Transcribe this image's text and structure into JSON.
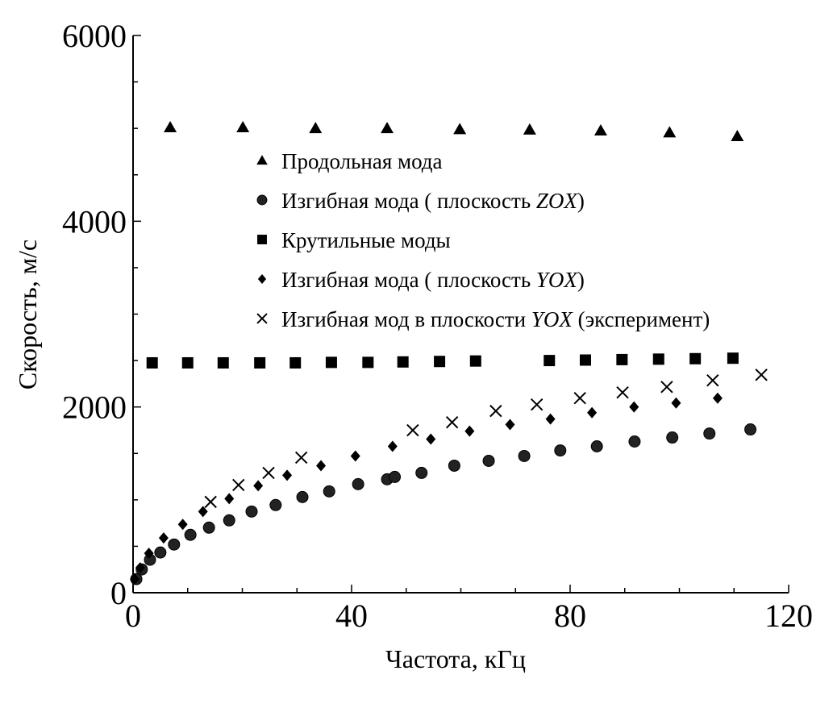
{
  "chart_data": {
    "type": "scatter",
    "title": "",
    "xlabel": "Частота, кГц",
    "ylabel": "Скорость, м/с",
    "xlim": [
      0,
      120
    ],
    "ylim": [
      0,
      6000
    ],
    "x_ticks": [
      0,
      40,
      80,
      120
    ],
    "y_ticks": [
      0,
      2000,
      4000,
      6000
    ],
    "x_tick_labels": [
      "0",
      "40",
      "80",
      "120"
    ],
    "y_tick_labels": [
      "0",
      "2000",
      "4000",
      "6000"
    ],
    "grid": false,
    "legend_position": "center",
    "series": [
      {
        "name": "Продольная мода",
        "label_pre": "Продольная мода",
        "label_it": "",
        "label_post": "",
        "marker": "triangle",
        "x": [
          6.8,
          20.1,
          33.4,
          46.5,
          59.8,
          72.6,
          85.6,
          98.2,
          110.6
        ],
        "y": [
          5010,
          5010,
          5000,
          5000,
          4990,
          4985,
          4975,
          4955,
          4915
        ]
      },
      {
        "name": "Изгибная мода  ( плоскость ZOX)",
        "label_pre": "Изгибная мода  ( плоскость ",
        "label_it": "ZOX",
        "label_post": ")",
        "marker": "circle",
        "x": [
          0.6,
          1.6,
          3.1,
          5.0,
          7.5,
          10.5,
          13.9,
          17.6,
          21.7,
          26.1,
          31.0,
          35.9,
          41.2,
          46.5,
          47.9,
          52.8,
          58.8,
          65.1,
          71.6,
          78.2,
          84.9,
          91.8,
          98.7,
          105.5,
          113.0
        ],
        "y": [
          147,
          251,
          355,
          433,
          519,
          623,
          701,
          779,
          874,
          944,
          1030,
          1091,
          1169,
          1221,
          1247,
          1290,
          1368,
          1420,
          1472,
          1532,
          1576,
          1628,
          1671,
          1714,
          1758
        ]
      },
      {
        "name": "Крутильные моды",
        "label_pre": "Крутильные моды",
        "label_it": "",
        "label_post": "",
        "marker": "square",
        "x": [
          3.5,
          10.0,
          16.5,
          23.2,
          29.7,
          36.3,
          43.0,
          49.4,
          56.1,
          62.7,
          76.2,
          82.8,
          89.5,
          96.2,
          102.9,
          109.8
        ],
        "y": [
          2475,
          2475,
          2475,
          2475,
          2475,
          2480,
          2480,
          2485,
          2490,
          2495,
          2500,
          2505,
          2510,
          2515,
          2520,
          2525
        ]
      },
      {
        "name": "Изгибная мода ( плоскость YOX)",
        "label_pre": "Изгибная мода ( плоскость ",
        "label_it": "YOX",
        "label_post": ")",
        "marker": "diamond",
        "x": [
          0.3,
          1.3,
          2.9,
          5.6,
          9.1,
          12.8,
          17.6,
          22.9,
          28.2,
          34.4,
          40.7,
          47.5,
          54.5,
          61.6,
          69.0,
          76.4,
          84.0,
          91.7,
          99.4,
          107.0
        ],
        "y": [
          147,
          268,
          424,
          589,
          736,
          874,
          1013,
          1152,
          1264,
          1368,
          1472,
          1576,
          1654,
          1740,
          1810,
          1870,
          1939,
          2000,
          2043,
          2095
        ]
      },
      {
        "name": "Изгибная мод в плоскости YOX (эксперимент)",
        "label_pre": "Изгибная мод в плоскости ",
        "label_it": "YOX",
        "label_post": " (эксперимент)",
        "marker": "cross",
        "x": [
          14.2,
          19.3,
          24.8,
          30.8,
          51.2,
          58.4,
          66.4,
          73.9,
          81.8,
          89.6,
          97.7,
          106.1,
          115.0
        ],
        "y": [
          978,
          1160,
          1290,
          1455,
          1749,
          1835,
          1957,
          2026,
          2095,
          2156,
          2216,
          2286,
          2346
        ]
      }
    ]
  }
}
